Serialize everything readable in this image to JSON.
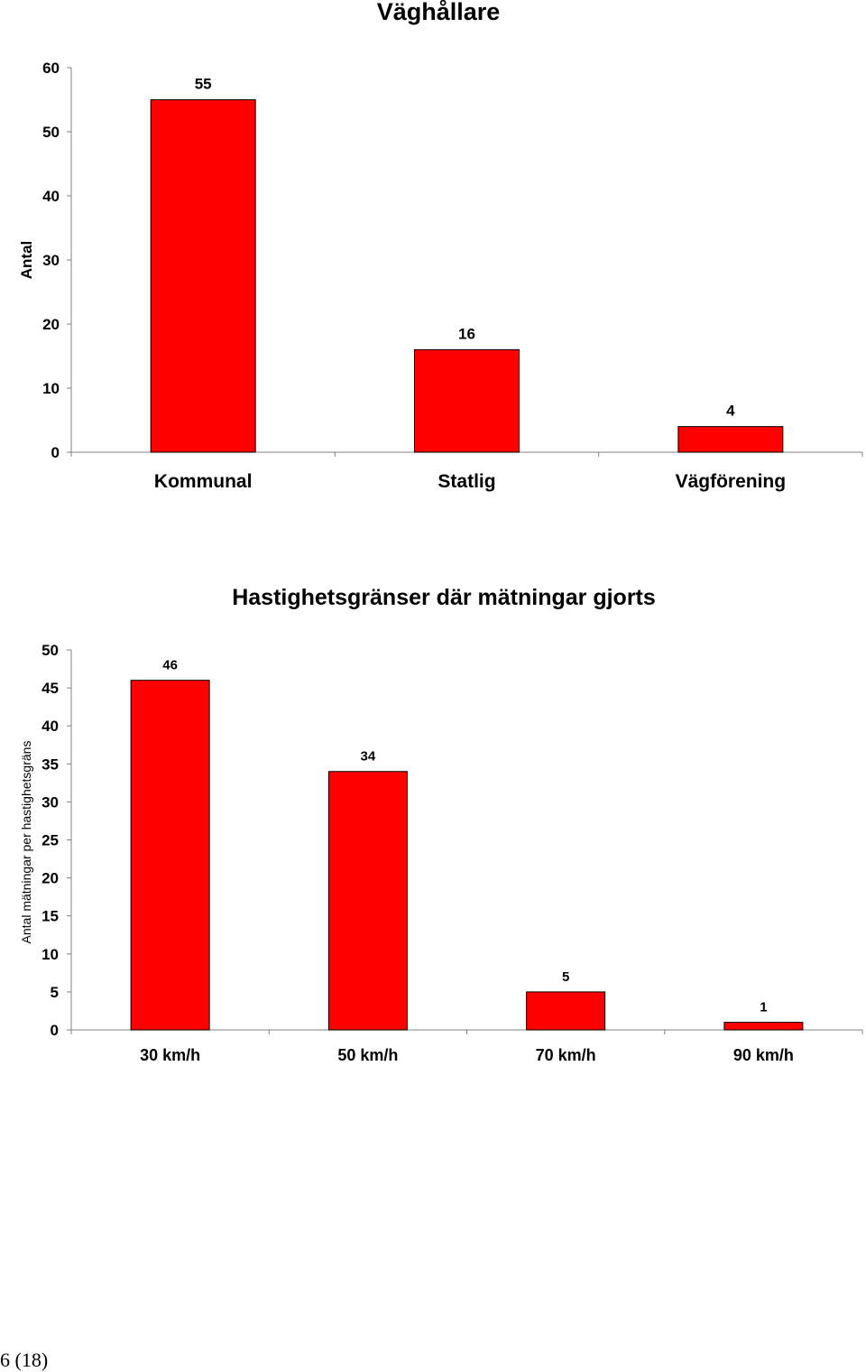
{
  "colors": {
    "bar_fill": "#ff0000",
    "bar_stroke": "#000000",
    "axis": "#808080"
  },
  "chart_data": [
    {
      "type": "bar",
      "title": "Väghållare",
      "xlabel": "",
      "ylabel": "Antal",
      "categories": [
        "Kommunal",
        "Statlig",
        "Vägförening"
      ],
      "values": [
        55,
        16,
        4
      ],
      "data_labels": [
        "55",
        "16",
        "4"
      ],
      "ylim": [
        0,
        60
      ],
      "yticks": [
        0,
        10,
        20,
        30,
        40,
        50,
        60
      ],
      "grid": false,
      "legend": "none"
    },
    {
      "type": "bar",
      "title": "Hastighetsgränser där mätningar gjorts",
      "xlabel": "",
      "ylabel": "Antal mätningar per hastighetsgräns",
      "categories": [
        "30 km/h",
        "50 km/h",
        "70 km/h",
        "90 km/h"
      ],
      "values": [
        46,
        34,
        5,
        1
      ],
      "data_labels": [
        "46",
        "34",
        "5",
        "1"
      ],
      "ylim": [
        0,
        50
      ],
      "yticks": [
        0,
        5,
        10,
        15,
        20,
        25,
        30,
        35,
        40,
        45,
        50
      ],
      "grid": false,
      "legend": "none"
    }
  ],
  "footer": {
    "page_number": "6 (18)"
  }
}
